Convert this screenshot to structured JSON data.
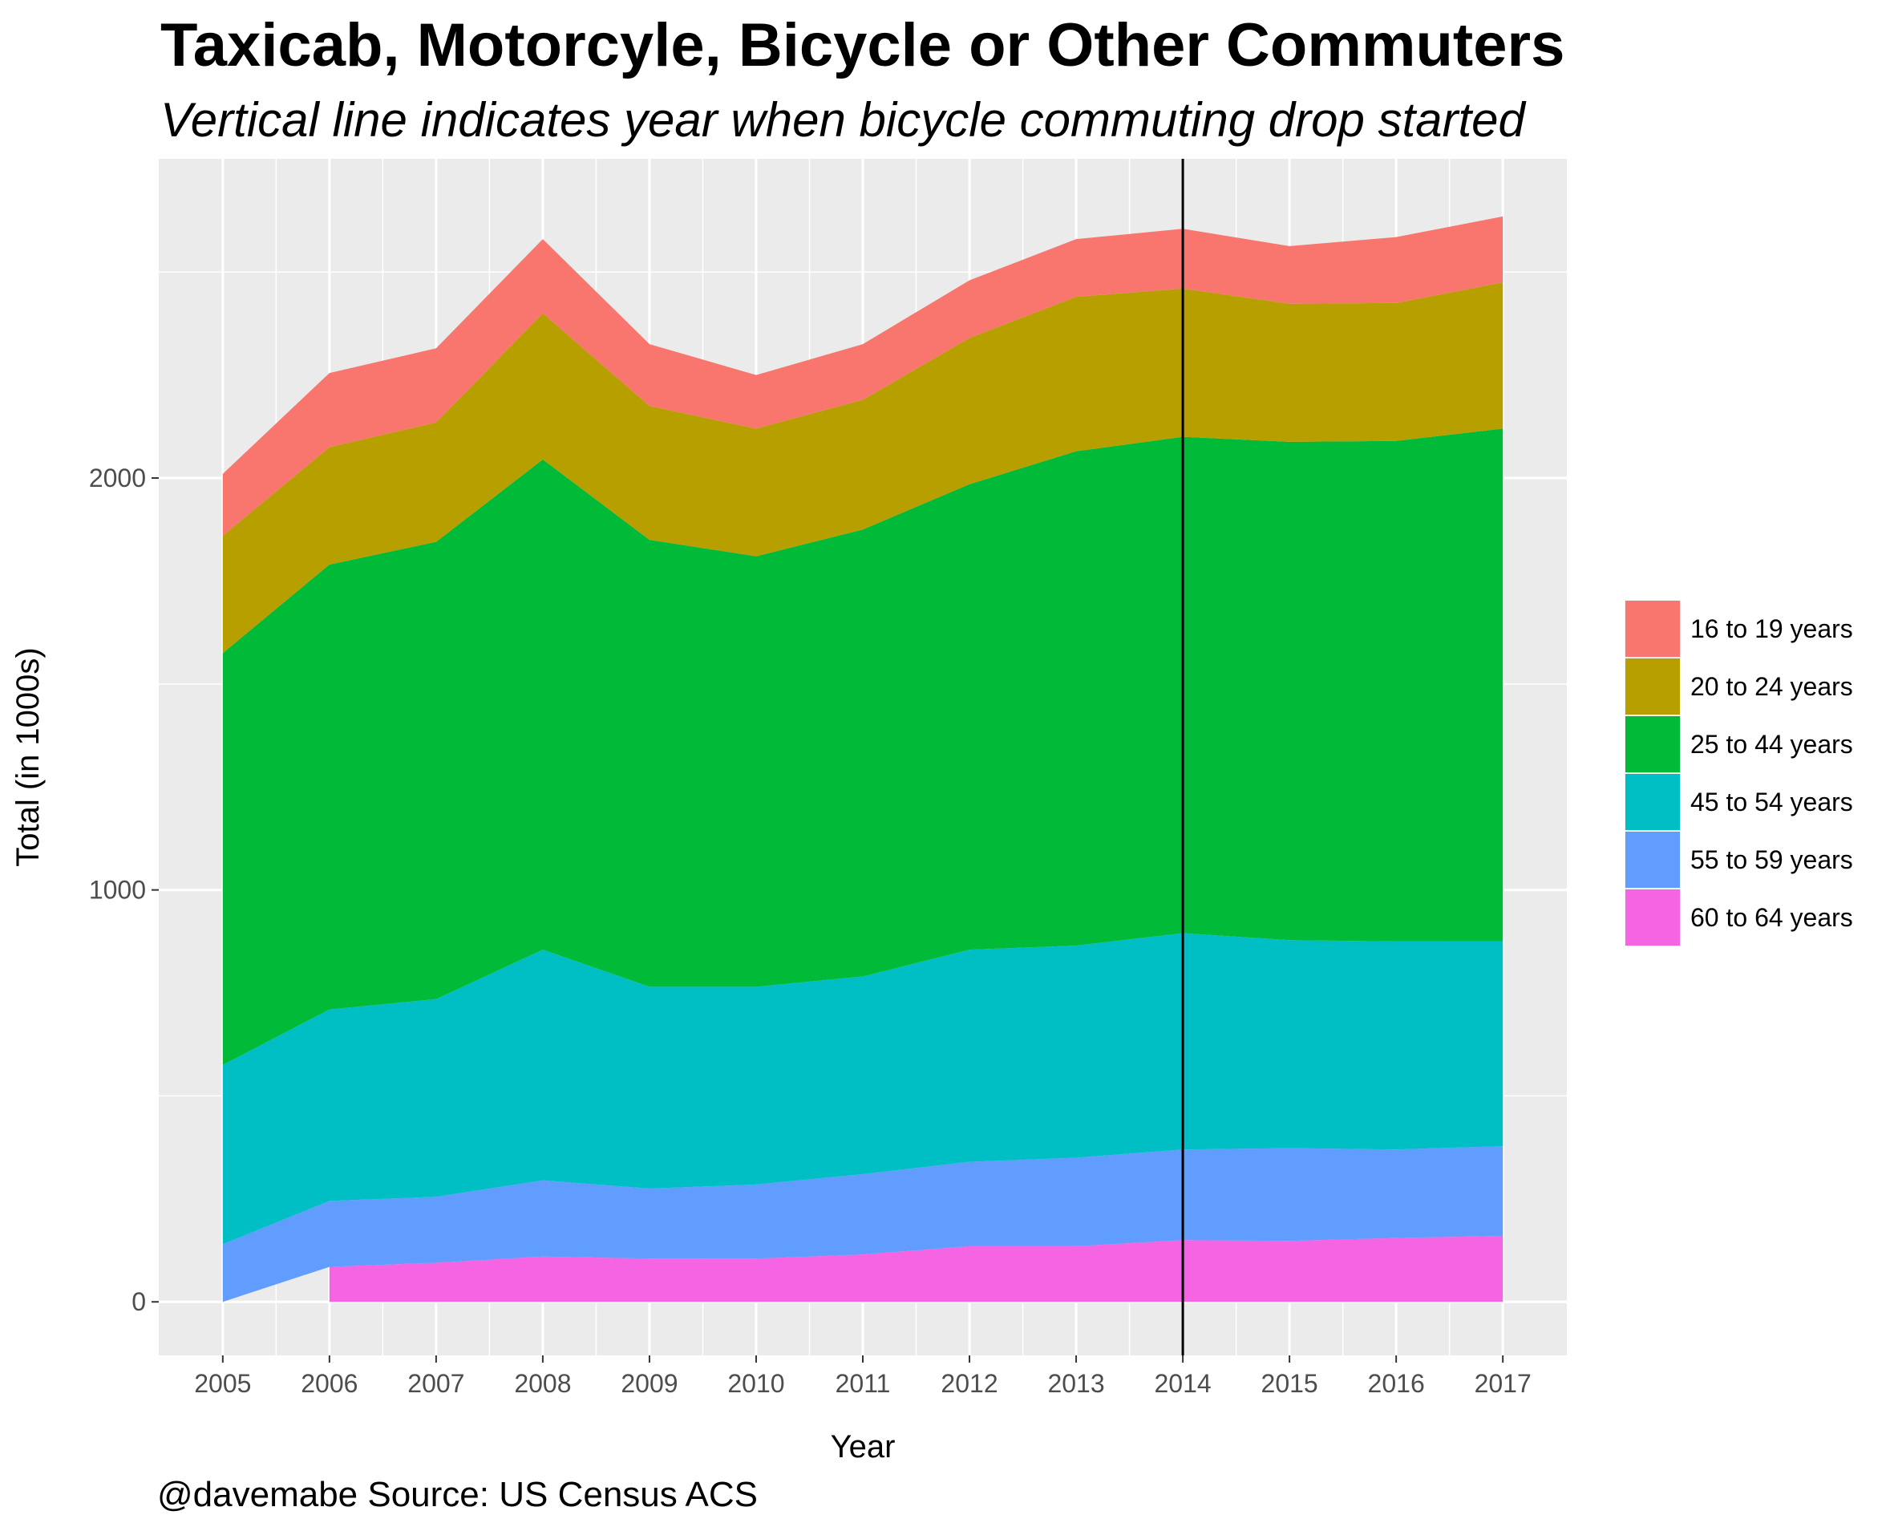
{
  "chart_data": {
    "type": "area",
    "stacked": true,
    "title": "Taxicab, Motorcyle, Bicycle or Other Commuters",
    "subtitle": "Vertical line indicates year when bicycle commuting drop started",
    "xlabel": "Year",
    "ylabel": "Total (in 1000s)",
    "caption": "@davemabe Source: US Census ACS",
    "x": [
      2005,
      2006,
      2007,
      2008,
      2009,
      2010,
      2011,
      2012,
      2013,
      2014,
      2015,
      2016,
      2017
    ],
    "xlim": [
      2004.4,
      2017.6
    ],
    "ylim": [
      -130,
      2775
    ],
    "y_ticks": [
      0,
      1000,
      2000
    ],
    "x_ticks": [
      2005,
      2006,
      2007,
      2008,
      2009,
      2010,
      2011,
      2012,
      2013,
      2014,
      2015,
      2016,
      2017
    ],
    "grid": true,
    "vline": {
      "x": 2014,
      "color": "#000000"
    },
    "legend_position": "right",
    "series": [
      {
        "name": "60 to 64 years",
        "color": "#F564E3",
        "values": [
          null,
          85,
          95,
          110,
          105,
          105,
          115,
          135,
          135,
          150,
          148,
          155,
          160
        ]
      },
      {
        "name": "55 to 59 years",
        "color": "#619CFF",
        "values": [
          140,
          160,
          160,
          185,
          170,
          180,
          195,
          205,
          215,
          220,
          225,
          215,
          218
        ]
      },
      {
        "name": "45 to 54 years",
        "color": "#00BFC4",
        "values": [
          435,
          465,
          480,
          560,
          490,
          480,
          480,
          515,
          515,
          525,
          505,
          505,
          497
        ]
      },
      {
        "name": "25 to 44 years",
        "color": "#00BA38",
        "values": [
          1000,
          1080,
          1110,
          1190,
          1085,
          1045,
          1085,
          1130,
          1200,
          1205,
          1210,
          1215,
          1245
        ]
      },
      {
        "name": "20 to 24 years",
        "color": "#B79F00",
        "values": [
          285,
          285,
          290,
          355,
          325,
          310,
          315,
          355,
          375,
          360,
          335,
          335,
          355
        ]
      },
      {
        "name": "16 to 19 years",
        "color": "#F8766D",
        "values": [
          150,
          180,
          180,
          180,
          150,
          130,
          135,
          140,
          140,
          145,
          140,
          160,
          160
        ]
      }
    ],
    "legend_order": [
      "16 to 19 years",
      "20 to 24 years",
      "25 to 44 years",
      "45 to 54 years",
      "55 to 59 years",
      "60 to 64 years"
    ]
  }
}
